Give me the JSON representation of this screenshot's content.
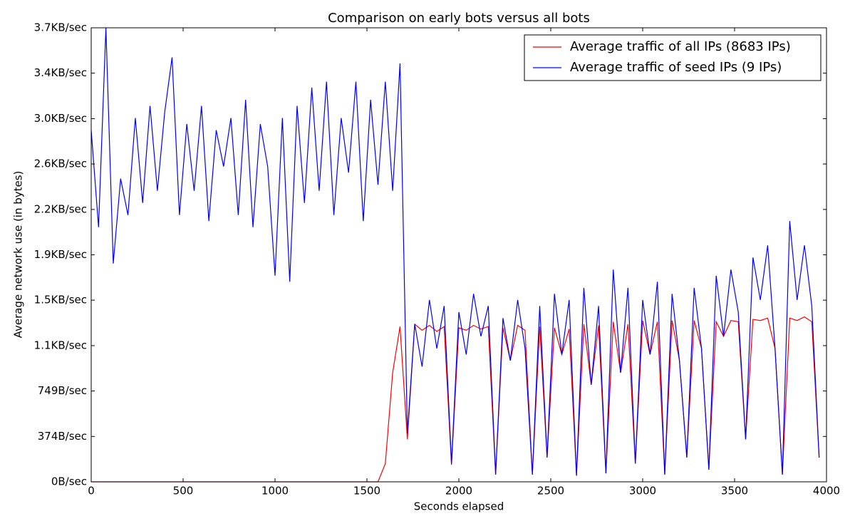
{
  "chart_data": {
    "type": "line",
    "title": "Comparison on early bots versus all bots",
    "x_label": "Seconds elapsed",
    "y_label": "Average network use (in bytes)",
    "x": [
      0,
      40,
      80,
      120,
      160,
      200,
      240,
      280,
      320,
      360,
      400,
      440,
      480,
      520,
      560,
      600,
      640,
      680,
      720,
      760,
      800,
      840,
      880,
      920,
      960,
      1000,
      1040,
      1080,
      1120,
      1160,
      1200,
      1240,
      1280,
      1320,
      1360,
      1400,
      1440,
      1480,
      1520,
      1560,
      1600,
      1640,
      1680,
      1720,
      1760,
      1800,
      1840,
      1880,
      1920,
      1960,
      2000,
      2040,
      2080,
      2120,
      2160,
      2200,
      2240,
      2280,
      2320,
      2360,
      2400,
      2440,
      2480,
      2520,
      2560,
      2600,
      2640,
      2680,
      2720,
      2760,
      2800,
      2840,
      2880,
      2920,
      2960,
      3000,
      3040,
      3080,
      3120,
      3160,
      3200,
      3240,
      3280,
      3320,
      3360,
      3400,
      3440,
      3480,
      3520,
      3560,
      3600,
      3640,
      3680,
      3720,
      3760,
      3800,
      3840,
      3880,
      3920,
      3960
    ],
    "series": [
      {
        "name": "Average traffic of all IPs (8683 IPs)",
        "color": "#ff0000",
        "values": [
          0,
          0,
          0,
          0,
          0,
          0,
          0,
          0,
          0,
          0,
          0,
          0,
          0,
          0,
          0,
          0,
          0,
          0,
          0,
          0,
          0,
          0,
          0,
          0,
          0,
          0,
          0,
          0,
          0,
          0,
          0,
          0,
          0,
          0,
          0,
          0,
          0,
          0,
          0,
          0,
          150,
          900,
          1280,
          350,
          1300,
          1250,
          1290,
          1240,
          1280,
          140,
          1270,
          1250,
          1290,
          1260,
          1280,
          60,
          1270,
          1000,
          1290,
          1250,
          60,
          1280,
          200,
          1270,
          1050,
          1260,
          50,
          1300,
          800,
          1290,
          70,
          1320,
          900,
          1300,
          150,
          1330,
          1050,
          1320,
          60,
          1330,
          1000,
          200,
          1330,
          1100,
          100,
          1320,
          1200,
          1330,
          1320,
          350,
          1340,
          1330,
          1350,
          1100,
          60,
          1350,
          1330,
          1360,
          1320,
          200
        ]
      },
      {
        "name": "Average traffic of seed IPs (9 IPs)",
        "color": "#0000ff",
        "values": [
          2900,
          2100,
          3744,
          1800,
          2500,
          2200,
          3000,
          2300,
          3100,
          2400,
          3050,
          3500,
          2200,
          2950,
          2400,
          3100,
          2150,
          2900,
          2600,
          3000,
          2200,
          3150,
          2100,
          2950,
          2600,
          1700,
          3000,
          1650,
          3100,
          2300,
          3250,
          2400,
          3300,
          2200,
          3000,
          2550,
          3300,
          2150,
          3150,
          2450,
          3300,
          2400,
          3450,
          400,
          1300,
          950,
          1500,
          1100,
          1450,
          150,
          1400,
          1050,
          1550,
          1200,
          1450,
          60,
          1350,
          1000,
          1500,
          1100,
          60,
          1450,
          200,
          1550,
          1050,
          1500,
          50,
          1600,
          800,
          1450,
          70,
          1750,
          900,
          1600,
          150,
          1500,
          1050,
          1650,
          60,
          1550,
          1000,
          200,
          1600,
          1100,
          100,
          1700,
          1200,
          1750,
          1400,
          350,
          1850,
          1500,
          1950,
          1100,
          60,
          2150,
          1500,
          1950,
          1450,
          200
        ]
      }
    ],
    "xlim": [
      0,
      4000
    ],
    "xticks": [
      0,
      500,
      1000,
      1500,
      2000,
      2500,
      3000,
      3500,
      4000
    ],
    "ylim": [
      0,
      3744
    ],
    "yticks": [
      {
        "value": 0,
        "label": "0B/sec"
      },
      {
        "value": 374,
        "label": "374B/sec"
      },
      {
        "value": 749,
        "label": "749B/sec"
      },
      {
        "value": 1123,
        "label": "1.1KB/sec"
      },
      {
        "value": 1498,
        "label": "1.5KB/sec"
      },
      {
        "value": 1872,
        "label": "1.9KB/sec"
      },
      {
        "value": 2246,
        "label": "2.2KB/sec"
      },
      {
        "value": 2621,
        "label": "2.6KB/sec"
      },
      {
        "value": 2995,
        "label": "3.0KB/sec"
      },
      {
        "value": 3370,
        "label": "3.4KB/sec"
      },
      {
        "value": 3744,
        "label": "3.7KB/sec"
      }
    ],
    "legend": "upper right"
  }
}
